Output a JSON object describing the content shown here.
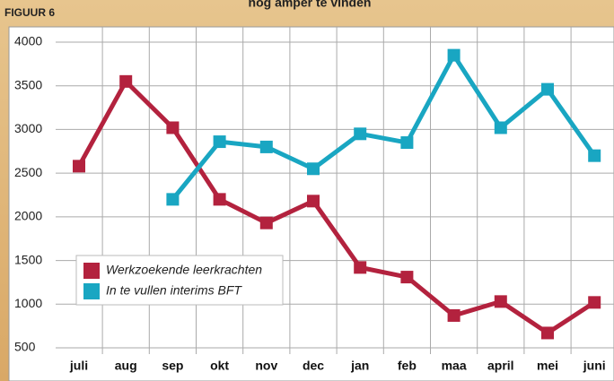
{
  "figure_label": "FIGUUR 6",
  "chart_data": {
    "type": "line",
    "title": "nog amper te vinden",
    "categories": [
      "juli",
      "aug",
      "sep",
      "okt",
      "nov",
      "dec",
      "jan",
      "feb",
      "maa",
      "april",
      "mei",
      "juni"
    ],
    "series": [
      {
        "name": "Werkzoekende leerkrachten",
        "color": "#b3223e",
        "values": [
          2580,
          3550,
          3020,
          2200,
          1930,
          2180,
          1420,
          1310,
          870,
          1030,
          670,
          1020
        ]
      },
      {
        "name": "In te vullen interims BFT",
        "color": "#19a6c2",
        "values": [
          null,
          null,
          2200,
          2860,
          2800,
          2550,
          2950,
          2850,
          3850,
          3020,
          3460,
          2700
        ]
      }
    ],
    "ylim": [
      500,
      4000
    ],
    "yticks": [
      500,
      1000,
      1500,
      2000,
      2500,
      3000,
      3500,
      4000
    ],
    "grid": true
  }
}
